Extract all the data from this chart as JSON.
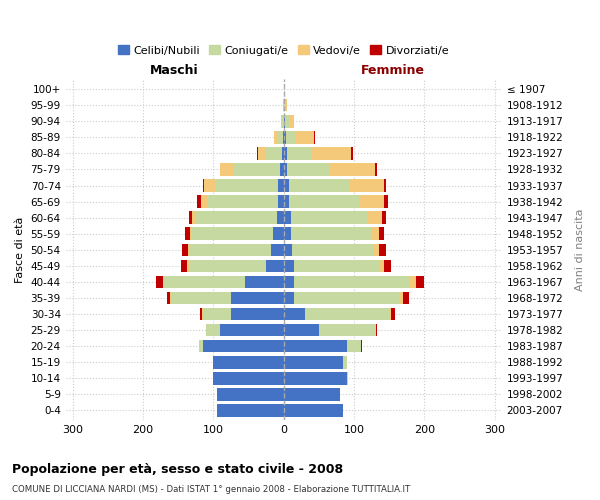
{
  "age_groups": [
    "0-4",
    "5-9",
    "10-14",
    "15-19",
    "20-24",
    "25-29",
    "30-34",
    "35-39",
    "40-44",
    "45-49",
    "50-54",
    "55-59",
    "60-64",
    "65-69",
    "70-74",
    "75-79",
    "80-84",
    "85-89",
    "90-94",
    "95-99",
    "100+"
  ],
  "birth_years": [
    "2003-2007",
    "1998-2002",
    "1993-1997",
    "1988-1992",
    "1983-1987",
    "1978-1982",
    "1973-1977",
    "1968-1972",
    "1963-1967",
    "1958-1962",
    "1953-1957",
    "1948-1952",
    "1943-1947",
    "1938-1942",
    "1933-1937",
    "1928-1932",
    "1923-1927",
    "1918-1922",
    "1913-1917",
    "1908-1912",
    "≤ 1907"
  ],
  "male": {
    "celibe": [
      95,
      95,
      100,
      100,
      115,
      90,
      75,
      75,
      55,
      25,
      18,
      15,
      10,
      8,
      8,
      5,
      2,
      1,
      0,
      0,
      0
    ],
    "coniugato": [
      0,
      0,
      0,
      1,
      5,
      20,
      40,
      85,
      115,
      110,
      115,
      115,
      115,
      100,
      90,
      65,
      25,
      8,
      3,
      1,
      0
    ],
    "vedovo": [
      0,
      0,
      0,
      0,
      0,
      0,
      1,
      1,
      2,
      3,
      3,
      3,
      5,
      10,
      15,
      20,
      10,
      5,
      1,
      0,
      0
    ],
    "divorziato": [
      0,
      0,
      0,
      0,
      0,
      1,
      3,
      5,
      10,
      8,
      8,
      8,
      5,
      5,
      2,
      1,
      1,
      0,
      0,
      0,
      0
    ]
  },
  "female": {
    "nubile": [
      85,
      80,
      90,
      85,
      90,
      50,
      30,
      15,
      15,
      15,
      12,
      10,
      10,
      8,
      8,
      5,
      5,
      3,
      2,
      1,
      0
    ],
    "coniugata": [
      0,
      0,
      2,
      5,
      20,
      80,
      120,
      150,
      165,
      120,
      115,
      115,
      110,
      100,
      85,
      60,
      35,
      15,
      5,
      1,
      0
    ],
    "vedova": [
      0,
      0,
      0,
      0,
      0,
      1,
      3,
      5,
      8,
      8,
      8,
      10,
      20,
      35,
      50,
      65,
      55,
      25,
      8,
      3,
      0
    ],
    "divorziata": [
      0,
      0,
      0,
      0,
      2,
      2,
      5,
      8,
      12,
      10,
      10,
      8,
      5,
      5,
      3,
      3,
      3,
      1,
      0,
      0,
      0
    ]
  },
  "colors": {
    "celibe": "#4472C4",
    "coniugato": "#C5D9A0",
    "vedovo": "#F5C97A",
    "divorziato": "#C00000"
  },
  "xlim": 310,
  "title": "Popolazione per età, sesso e stato civile - 2008",
  "subtitle": "COMUNE DI LICCIANA NARDI (MS) - Dati ISTAT 1° gennaio 2008 - Elaborazione TUTTITALIA.IT",
  "ylabel_left": "Fasce di età",
  "ylabel_right": "Anni di nascita",
  "xlabel_left": "Maschi",
  "xlabel_right": "Femmine",
  "legend_labels": [
    "Celibi/Nubili",
    "Coniugati/e",
    "Vedovi/e",
    "Divorziati/e"
  ],
  "bg_color": "#ffffff",
  "grid_color": "#cccccc",
  "femmine_color": "#8B0000"
}
